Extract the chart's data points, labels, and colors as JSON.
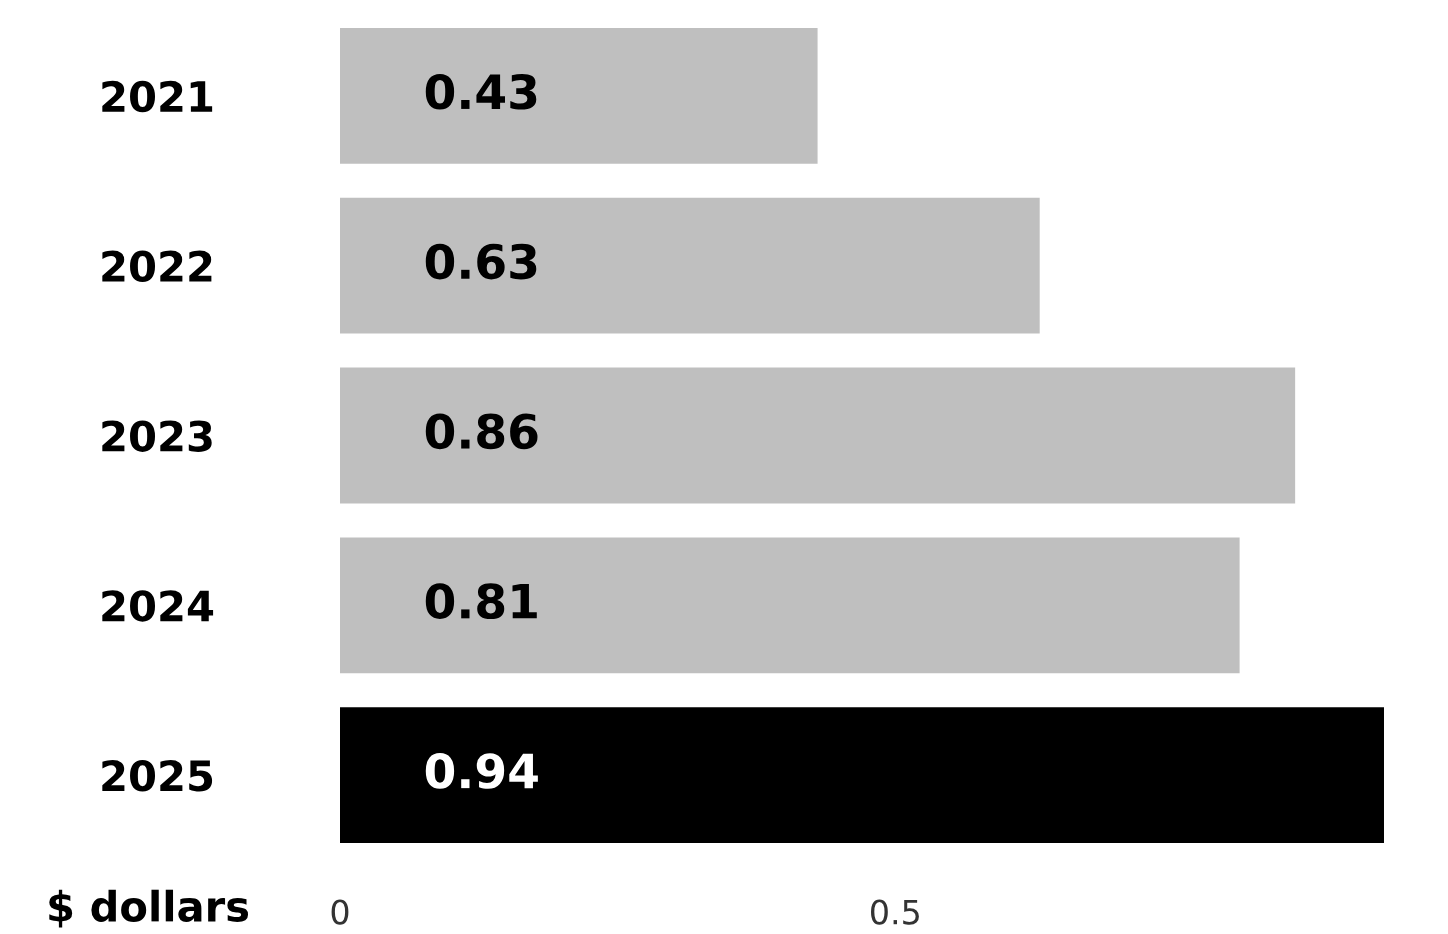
{
  "chart_data": {
    "type": "bar",
    "orientation": "horizontal",
    "xlabel": "$ dollars",
    "categories": [
      "2021",
      "2022",
      "2023",
      "2024",
      "2025"
    ],
    "values": [
      0.43,
      0.63,
      0.86,
      0.81,
      0.94
    ],
    "colors": [
      "#bfbfbf",
      "#bfbfbf",
      "#bfbfbf",
      "#bfbfbf",
      "#000000"
    ],
    "xlim": [
      0,
      0.94
    ],
    "xticks": [
      0,
      0.5
    ],
    "data_labels": true,
    "grid": false,
    "legend": false
  }
}
